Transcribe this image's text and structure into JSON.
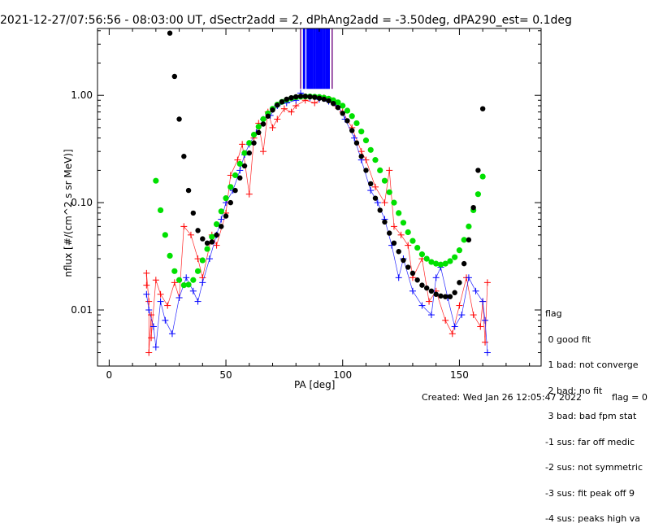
{
  "title": "2021-12-27/07:56:56 - 08:03:00 UT, dSectr2add = 2, dPhAng2add = -3.50deg, dPA290_est=   0.1deg",
  "footer": {
    "created": "Created: Wed Jan 26 12:05:47 2022",
    "flag": "flag = 0"
  },
  "legend": {
    "title": "flag",
    "items": [
      " 0 good fit",
      " 1 bad: not converge",
      " 2 bad: no fit",
      " 3 bad: bad fpm stat",
      "-1 sus: far off medic",
      "-2 sus: not symmetric",
      "-3 sus: fit peak off 9",
      "-4 sus: peaks high va"
    ]
  },
  "chart_data": {
    "type": "scatter",
    "xlabel": "PA [deg]",
    "ylabel": "nflux [#/(cm^2 s sr MeV)]",
    "xlim": [
      -5,
      185
    ],
    "ylim": [
      0.003,
      4.2
    ],
    "yscale": "log",
    "xticks": [
      0,
      50,
      100,
      150
    ],
    "xtick_labels": [
      "0",
      "50",
      "100",
      "150"
    ],
    "yticks": [
      0.01,
      0.1,
      1.0
    ],
    "ytick_labels": [
      "0.01",
      "0.10",
      "1.00"
    ],
    "colors": {
      "red": "#ff0000",
      "blue": "#0000ff",
      "black": "#000000",
      "green": "#00e000",
      "purple": "#7a1a8a"
    },
    "black_fit": [
      [
        26,
        3.8
      ],
      [
        28,
        1.5
      ],
      [
        30,
        0.6
      ],
      [
        32,
        0.27
      ],
      [
        34,
        0.13
      ],
      [
        36,
        0.08
      ],
      [
        38,
        0.055
      ],
      [
        40,
        0.046
      ],
      [
        42,
        0.042
      ],
      [
        44,
        0.043
      ],
      [
        46,
        0.05
      ],
      [
        48,
        0.06
      ],
      [
        50,
        0.075
      ],
      [
        52,
        0.1
      ],
      [
        54,
        0.13
      ],
      [
        56,
        0.17
      ],
      [
        58,
        0.22
      ],
      [
        60,
        0.29
      ],
      [
        62,
        0.36
      ],
      [
        64,
        0.45
      ],
      [
        66,
        0.54
      ],
      [
        68,
        0.64
      ],
      [
        70,
        0.73
      ],
      [
        72,
        0.81
      ],
      [
        74,
        0.87
      ],
      [
        76,
        0.92
      ],
      [
        78,
        0.95
      ],
      [
        80,
        0.97
      ],
      [
        82,
        0.98
      ],
      [
        84,
        0.98
      ],
      [
        86,
        0.97
      ],
      [
        88,
        0.96
      ],
      [
        90,
        0.94
      ],
      [
        92,
        0.92
      ],
      [
        94,
        0.89
      ],
      [
        96,
        0.84
      ],
      [
        98,
        0.77
      ],
      [
        100,
        0.68
      ],
      [
        102,
        0.58
      ],
      [
        104,
        0.47
      ],
      [
        106,
        0.36
      ],
      [
        108,
        0.27
      ],
      [
        110,
        0.2
      ],
      [
        112,
        0.15
      ],
      [
        114,
        0.11
      ],
      [
        116,
        0.085
      ],
      [
        118,
        0.066
      ],
      [
        120,
        0.052
      ],
      [
        122,
        0.042
      ],
      [
        124,
        0.035
      ],
      [
        126,
        0.029
      ],
      [
        128,
        0.025
      ],
      [
        130,
        0.022
      ],
      [
        132,
        0.019
      ],
      [
        134,
        0.017
      ],
      [
        136,
        0.016
      ],
      [
        138,
        0.015
      ],
      [
        140,
        0.014
      ],
      [
        142,
        0.0135
      ],
      [
        144,
        0.0133
      ],
      [
        146,
        0.0133
      ],
      [
        148,
        0.0145
      ],
      [
        150,
        0.018
      ],
      [
        152,
        0.027
      ],
      [
        154,
        0.045
      ],
      [
        156,
        0.09
      ],
      [
        158,
        0.2
      ],
      [
        160,
        0.75
      ]
    ],
    "green_fit": [
      [
        20,
        0.16
      ],
      [
        22,
        0.085
      ],
      [
        24,
        0.05
      ],
      [
        26,
        0.032
      ],
      [
        28,
        0.023
      ],
      [
        30,
        0.019
      ],
      [
        32,
        0.017
      ],
      [
        34,
        0.0172
      ],
      [
        36,
        0.019
      ],
      [
        38,
        0.023
      ],
      [
        40,
        0.029
      ],
      [
        42,
        0.037
      ],
      [
        44,
        0.048
      ],
      [
        46,
        0.063
      ],
      [
        48,
        0.083
      ],
      [
        50,
        0.11
      ],
      [
        52,
        0.14
      ],
      [
        54,
        0.18
      ],
      [
        56,
        0.23
      ],
      [
        58,
        0.29
      ],
      [
        60,
        0.36
      ],
      [
        62,
        0.43
      ],
      [
        64,
        0.51
      ],
      [
        66,
        0.6
      ],
      [
        68,
        0.68
      ],
      [
        70,
        0.75
      ],
      [
        72,
        0.82
      ],
      [
        74,
        0.87
      ],
      [
        76,
        0.91
      ],
      [
        78,
        0.94
      ],
      [
        80,
        0.96
      ],
      [
        82,
        0.97
      ],
      [
        84,
        0.975
      ],
      [
        86,
        0.975
      ],
      [
        88,
        0.97
      ],
      [
        90,
        0.965
      ],
      [
        92,
        0.95
      ],
      [
        94,
        0.93
      ],
      [
        96,
        0.9
      ],
      [
        98,
        0.86
      ],
      [
        100,
        0.8
      ],
      [
        102,
        0.72
      ],
      [
        104,
        0.64
      ],
      [
        106,
        0.55
      ],
      [
        108,
        0.46
      ],
      [
        110,
        0.38
      ],
      [
        112,
        0.31
      ],
      [
        114,
        0.25
      ],
      [
        116,
        0.2
      ],
      [
        118,
        0.16
      ],
      [
        120,
        0.125
      ],
      [
        122,
        0.1
      ],
      [
        124,
        0.08
      ],
      [
        126,
        0.065
      ],
      [
        128,
        0.053
      ],
      [
        130,
        0.044
      ],
      [
        132,
        0.038
      ],
      [
        134,
        0.033
      ],
      [
        136,
        0.03
      ],
      [
        138,
        0.028
      ],
      [
        140,
        0.027
      ],
      [
        142,
        0.0265
      ],
      [
        144,
        0.027
      ],
      [
        146,
        0.0285
      ],
      [
        148,
        0.031
      ],
      [
        150,
        0.036
      ],
      [
        152,
        0.045
      ],
      [
        154,
        0.06
      ],
      [
        156,
        0.085
      ],
      [
        158,
        0.12
      ],
      [
        160,
        0.175
      ]
    ],
    "vertical_lines_x": [
      82,
      83.5,
      85,
      86,
      87,
      88,
      89,
      90,
      91,
      92,
      93,
      94,
      95.5
    ],
    "vertical_lines_top": 4.2,
    "vertical_lines_bottom": 1.15,
    "red_markers": [
      [
        16,
        0.017
      ],
      [
        17,
        0.012
      ],
      [
        18,
        0.009
      ],
      [
        16,
        0.022
      ],
      [
        17,
        0.004
      ],
      [
        18,
        0.0055
      ],
      [
        20,
        0.019
      ],
      [
        22,
        0.014
      ],
      [
        25,
        0.011
      ],
      [
        28,
        0.018
      ],
      [
        30,
        0.013
      ],
      [
        32,
        0.06
      ],
      [
        35,
        0.05
      ],
      [
        38,
        0.03
      ],
      [
        40,
        0.02
      ],
      [
        44,
        0.05
      ],
      [
        46,
        0.04
      ],
      [
        50,
        0.08
      ],
      [
        52,
        0.18
      ],
      [
        55,
        0.25
      ],
      [
        57,
        0.35
      ],
      [
        60,
        0.12
      ],
      [
        62,
        0.4
      ],
      [
        64,
        0.55
      ],
      [
        66,
        0.3
      ],
      [
        68,
        0.7
      ],
      [
        70,
        0.5
      ],
      [
        72,
        0.6
      ],
      [
        75,
        0.75
      ],
      [
        78,
        0.7
      ],
      [
        80,
        0.8
      ],
      [
        84,
        0.9
      ],
      [
        88,
        0.85
      ],
      [
        92,
        0.95
      ],
      [
        95,
        0.9
      ],
      [
        97,
        0.8
      ],
      [
        100,
        0.7
      ],
      [
        104,
        0.5
      ],
      [
        108,
        0.3
      ],
      [
        110,
        0.25
      ],
      [
        114,
        0.14
      ],
      [
        118,
        0.1
      ],
      [
        120,
        0.2
      ],
      [
        122,
        0.06
      ],
      [
        125,
        0.05
      ],
      [
        128,
        0.04
      ],
      [
        130,
        0.02
      ],
      [
        134,
        0.03
      ],
      [
        137,
        0.012
      ],
      [
        140,
        0.015
      ],
      [
        144,
        0.008
      ],
      [
        147,
        0.006
      ],
      [
        150,
        0.011
      ],
      [
        153,
        0.02
      ],
      [
        156,
        0.009
      ],
      [
        159,
        0.007
      ],
      [
        160,
        0.012
      ],
      [
        161,
        0.005
      ],
      [
        162,
        0.018
      ]
    ],
    "blue_markers": [
      [
        16,
        0.014
      ],
      [
        17,
        0.01
      ],
      [
        19,
        0.007
      ],
      [
        20,
        0.0045
      ],
      [
        22,
        0.012
      ],
      [
        24,
        0.008
      ],
      [
        27,
        0.006
      ],
      [
        30,
        0.013
      ],
      [
        33,
        0.02
      ],
      [
        36,
        0.015
      ],
      [
        38,
        0.012
      ],
      [
        40,
        0.018
      ],
      [
        43,
        0.03
      ],
      [
        46,
        0.05
      ],
      [
        48,
        0.07
      ],
      [
        50,
        0.1
      ],
      [
        53,
        0.13
      ],
      [
        56,
        0.2
      ],
      [
        58,
        0.28
      ],
      [
        60,
        0.35
      ],
      [
        63,
        0.45
      ],
      [
        66,
        0.6
      ],
      [
        69,
        0.65
      ],
      [
        72,
        0.8
      ],
      [
        76,
        0.85
      ],
      [
        80,
        0.9
      ],
      [
        82,
        1.05
      ],
      [
        86,
        0.95
      ],
      [
        90,
        0.92
      ],
      [
        94,
        0.88
      ],
      [
        98,
        0.8
      ],
      [
        101,
        0.6
      ],
      [
        105,
        0.4
      ],
      [
        108,
        0.25
      ],
      [
        112,
        0.13
      ],
      [
        115,
        0.1
      ],
      [
        118,
        0.07
      ],
      [
        121,
        0.04
      ],
      [
        124,
        0.02
      ],
      [
        126,
        0.03
      ],
      [
        130,
        0.015
      ],
      [
        134,
        0.011
      ],
      [
        138,
        0.009
      ],
      [
        140,
        0.02
      ],
      [
        142,
        0.025
      ],
      [
        145,
        0.013
      ],
      [
        148,
        0.007
      ],
      [
        151,
        0.009
      ],
      [
        154,
        0.02
      ],
      [
        157,
        0.015
      ],
      [
        160,
        0.012
      ],
      [
        161,
        0.008
      ],
      [
        162,
        0.004
      ]
    ]
  }
}
